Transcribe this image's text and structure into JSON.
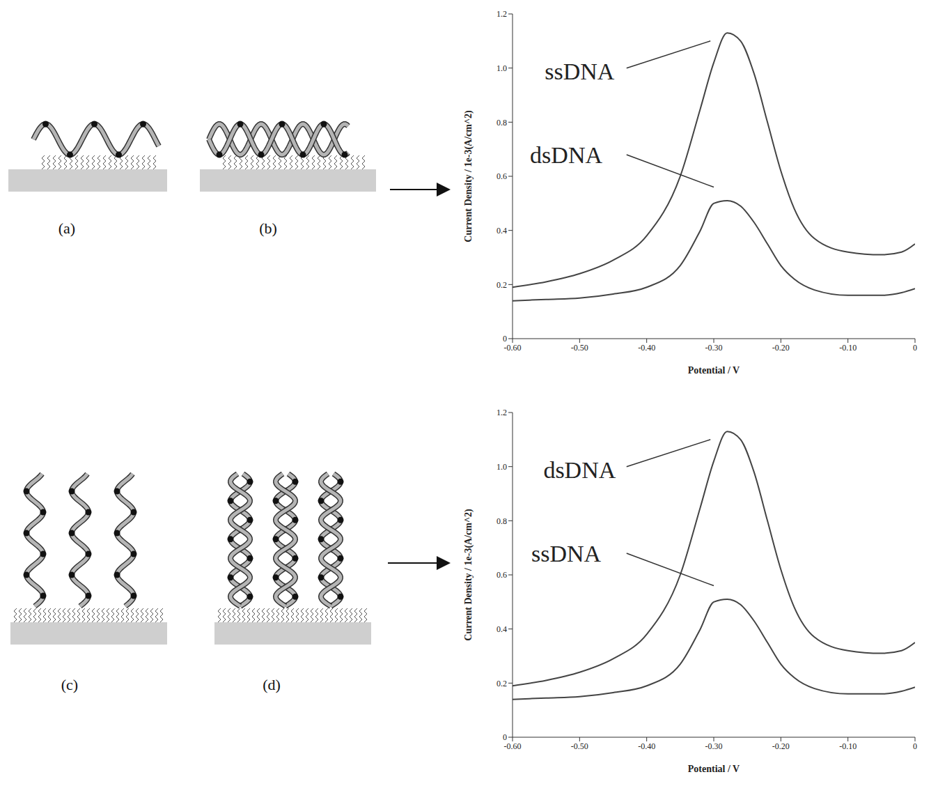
{
  "panel_labels": [
    "(a)",
    "(b)",
    "(c)",
    "(d)"
  ],
  "chart_data": [
    {
      "type": "line",
      "x_label": "Potential / V",
      "y_label": "Current Density / 1e-3(A/cm^2)",
      "grid": false,
      "x": [
        -0.6,
        -0.55,
        -0.5,
        -0.45,
        -0.4,
        -0.35,
        -0.32,
        -0.3,
        -0.28,
        -0.26,
        -0.24,
        -0.22,
        -0.2,
        -0.18,
        -0.15,
        -0.1,
        -0.05,
        -0.02,
        0
      ],
      "xlim": [
        -0.6,
        0
      ],
      "xticks": [
        {
          "value": -0.6,
          "label": "-0.60"
        },
        {
          "value": -0.5,
          "label": "-0.50"
        },
        {
          "value": -0.4,
          "label": "-0.40"
        },
        {
          "value": -0.3,
          "label": "-0.30"
        },
        {
          "value": -0.2,
          "label": "-0.20"
        },
        {
          "value": -0.1,
          "label": "-0.10"
        },
        0
      ],
      "ylim": [
        0,
        1.2
      ],
      "yticks": [
        0,
        0.2,
        0.4,
        0.6,
        0.8,
        {
          "value": 1,
          "label": "1.0"
        },
        1.2
      ],
      "series": [
        {
          "name": "ssDNA",
          "color": "#444444",
          "values": [
            0.19,
            0.21,
            0.24,
            0.29,
            0.38,
            0.6,
            0.85,
            1.02,
            1.13,
            1.1,
            0.98,
            0.8,
            0.62,
            0.48,
            0.37,
            0.32,
            0.31,
            0.32,
            0.35
          ]
        },
        {
          "name": "dsDNA",
          "color": "#444444",
          "values": [
            0.14,
            0.145,
            0.15,
            0.165,
            0.19,
            0.27,
            0.4,
            0.5,
            0.51,
            0.49,
            0.43,
            0.35,
            0.27,
            0.22,
            0.18,
            0.16,
            0.16,
            0.17,
            0.185
          ]
        }
      ]
    },
    {
      "type": "line",
      "x_label": "Potential / V",
      "y_label": "Current Density / 1e-3(A/cm^2)",
      "grid": false,
      "x": [
        -0.6,
        -0.55,
        -0.5,
        -0.45,
        -0.4,
        -0.35,
        -0.32,
        -0.3,
        -0.28,
        -0.26,
        -0.24,
        -0.22,
        -0.2,
        -0.18,
        -0.15,
        -0.1,
        -0.05,
        -0.02,
        0
      ],
      "xlim": [
        -0.6,
        0
      ],
      "xticks": [
        {
          "value": -0.6,
          "label": "-0.60"
        },
        {
          "value": -0.5,
          "label": "-0.50"
        },
        {
          "value": -0.4,
          "label": "-0.40"
        },
        {
          "value": -0.3,
          "label": "-0.30"
        },
        {
          "value": -0.2,
          "label": "-0.20"
        },
        {
          "value": -0.1,
          "label": "-0.10"
        },
        0
      ],
      "ylim": [
        0,
        1.2
      ],
      "yticks": [
        0,
        0.2,
        0.4,
        0.6,
        0.8,
        {
          "value": 1,
          "label": "1.0"
        },
        1.2
      ],
      "series": [
        {
          "name": "dsDNA",
          "color": "#444444",
          "values": [
            0.19,
            0.21,
            0.24,
            0.29,
            0.38,
            0.6,
            0.85,
            1.02,
            1.13,
            1.1,
            0.98,
            0.8,
            0.62,
            0.48,
            0.37,
            0.32,
            0.31,
            0.32,
            0.35
          ]
        },
        {
          "name": "ssDNA",
          "color": "#444444",
          "values": [
            0.14,
            0.145,
            0.15,
            0.165,
            0.19,
            0.27,
            0.4,
            0.5,
            0.51,
            0.49,
            0.43,
            0.35,
            0.27,
            0.22,
            0.18,
            0.16,
            0.16,
            0.17,
            0.185
          ]
        }
      ]
    }
  ]
}
